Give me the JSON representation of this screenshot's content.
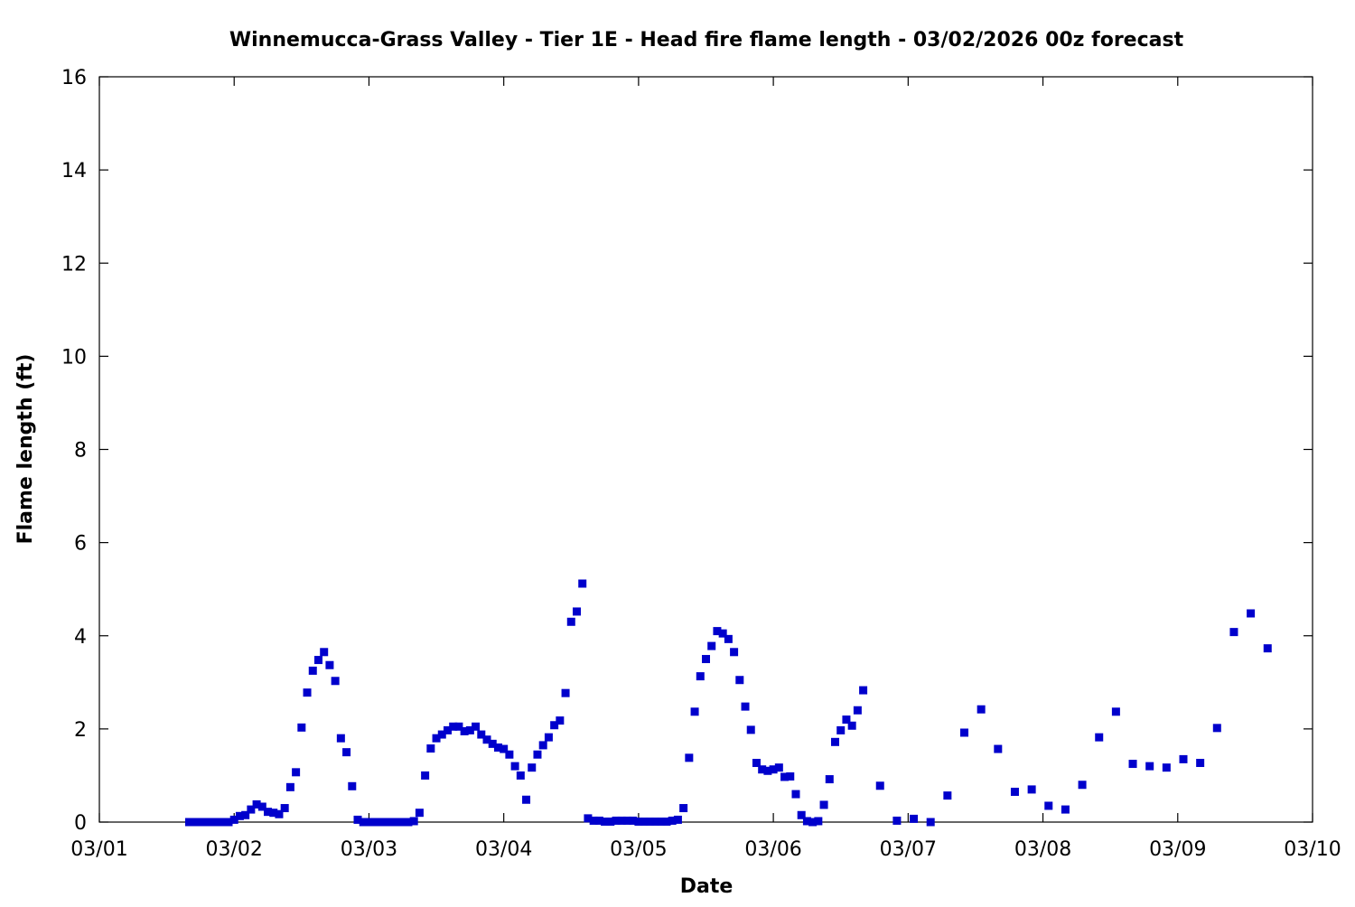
{
  "chart_data": {
    "type": "scatter",
    "title": "Winnemucca-Grass Valley - Tier 1E - Head fire flame length - 03/02/2026 00z forecast",
    "xlabel": "Date",
    "ylabel": "Flame length (ft)",
    "xlim": [
      "03/01 00:00",
      "03/10 00:00"
    ],
    "ylim": [
      0,
      16
    ],
    "xticks": [
      "03/01",
      "03/02",
      "03/03",
      "03/04",
      "03/05",
      "03/06",
      "03/07",
      "03/08",
      "03/09",
      "03/10"
    ],
    "yticks": [
      0,
      2,
      4,
      6,
      8,
      10,
      12,
      14,
      16
    ],
    "grid": false,
    "marker_color": "#0000cc",
    "points": [
      [
        "03/01 16:00",
        0
      ],
      [
        "03/01 17:00",
        0
      ],
      [
        "03/01 18:00",
        0
      ],
      [
        "03/01 19:00",
        0
      ],
      [
        "03/01 20:00",
        0
      ],
      [
        "03/01 21:00",
        0
      ],
      [
        "03/01 22:00",
        0
      ],
      [
        "03/01 23:00",
        0
      ],
      [
        "03/02 00:00",
        0.05
      ],
      [
        "03/02 01:00",
        0.13
      ],
      [
        "03/02 02:00",
        0.15
      ],
      [
        "03/02 03:00",
        0.27
      ],
      [
        "03/02 04:00",
        0.38
      ],
      [
        "03/02 05:00",
        0.33
      ],
      [
        "03/02 06:00",
        0.22
      ],
      [
        "03/02 07:00",
        0.2
      ],
      [
        "03/02 08:00",
        0.17
      ],
      [
        "03/02 09:00",
        0.3
      ],
      [
        "03/02 10:00",
        0.75
      ],
      [
        "03/02 11:00",
        1.07
      ],
      [
        "03/02 12:00",
        2.03
      ],
      [
        "03/02 13:00",
        2.78
      ],
      [
        "03/02 14:00",
        3.25
      ],
      [
        "03/02 15:00",
        3.48
      ],
      [
        "03/02 16:00",
        3.65
      ],
      [
        "03/02 17:00",
        3.37
      ],
      [
        "03/02 18:00",
        3.03
      ],
      [
        "03/02 19:00",
        1.8
      ],
      [
        "03/02 20:00",
        1.5
      ],
      [
        "03/02 21:00",
        0.77
      ],
      [
        "03/02 22:00",
        0.05
      ],
      [
        "03/02 23:00",
        0
      ],
      [
        "03/03 00:00",
        0
      ],
      [
        "03/03 01:00",
        0
      ],
      [
        "03/03 02:00",
        0
      ],
      [
        "03/03 03:00",
        0
      ],
      [
        "03/03 04:00",
        0
      ],
      [
        "03/03 05:00",
        0
      ],
      [
        "03/03 06:00",
        0
      ],
      [
        "03/03 07:00",
        0
      ],
      [
        "03/03 08:00",
        0.02
      ],
      [
        "03/03 09:00",
        0.2
      ],
      [
        "03/03 10:00",
        1.0
      ],
      [
        "03/03 11:00",
        1.58
      ],
      [
        "03/03 12:00",
        1.8
      ],
      [
        "03/03 13:00",
        1.88
      ],
      [
        "03/03 14:00",
        1.97
      ],
      [
        "03/03 15:00",
        2.05
      ],
      [
        "03/03 16:00",
        2.05
      ],
      [
        "03/03 17:00",
        1.95
      ],
      [
        "03/03 18:00",
        1.97
      ],
      [
        "03/03 19:00",
        2.05
      ],
      [
        "03/03 20:00",
        1.88
      ],
      [
        "03/03 21:00",
        1.77
      ],
      [
        "03/03 22:00",
        1.68
      ],
      [
        "03/03 23:00",
        1.6
      ],
      [
        "03/04 00:00",
        1.57
      ],
      [
        "03/04 01:00",
        1.45
      ],
      [
        "03/04 02:00",
        1.2
      ],
      [
        "03/04 03:00",
        1.0
      ],
      [
        "03/04 04:00",
        0.48
      ],
      [
        "03/04 05:00",
        1.17
      ],
      [
        "03/04 06:00",
        1.45
      ],
      [
        "03/04 07:00",
        1.65
      ],
      [
        "03/04 08:00",
        1.82
      ],
      [
        "03/04 09:00",
        2.08
      ],
      [
        "03/04 10:00",
        2.18
      ],
      [
        "03/04 11:00",
        2.77
      ],
      [
        "03/04 12:00",
        4.3
      ],
      [
        "03/04 13:00",
        4.52
      ],
      [
        "03/04 14:00",
        5.12
      ],
      [
        "03/04 15:00",
        0.08
      ],
      [
        "03/04 16:00",
        0.03
      ],
      [
        "03/04 17:00",
        0.03
      ],
      [
        "03/04 18:00",
        0.01
      ],
      [
        "03/04 19:00",
        0.01
      ],
      [
        "03/04 20:00",
        0.03
      ],
      [
        "03/04 21:00",
        0.03
      ],
      [
        "03/04 22:00",
        0.03
      ],
      [
        "03/04 23:00",
        0.03
      ],
      [
        "03/05 00:00",
        0.01
      ],
      [
        "03/05 01:00",
        0.01
      ],
      [
        "03/05 02:00",
        0.01
      ],
      [
        "03/05 03:00",
        0.01
      ],
      [
        "03/05 04:00",
        0.01
      ],
      [
        "03/05 05:00",
        0.01
      ],
      [
        "03/05 06:00",
        0.03
      ],
      [
        "03/05 07:00",
        0.05
      ],
      [
        "03/05 08:00",
        0.3
      ],
      [
        "03/05 09:00",
        1.38
      ],
      [
        "03/05 10:00",
        2.37
      ],
      [
        "03/05 11:00",
        3.13
      ],
      [
        "03/05 12:00",
        3.5
      ],
      [
        "03/05 13:00",
        3.78
      ],
      [
        "03/05 14:00",
        4.1
      ],
      [
        "03/05 15:00",
        4.05
      ],
      [
        "03/05 16:00",
        3.93
      ],
      [
        "03/05 17:00",
        3.65
      ],
      [
        "03/05 18:00",
        3.05
      ],
      [
        "03/05 19:00",
        2.48
      ],
      [
        "03/05 20:00",
        1.98
      ],
      [
        "03/05 21:00",
        1.27
      ],
      [
        "03/05 22:00",
        1.13
      ],
      [
        "03/05 23:00",
        1.1
      ],
      [
        "03/06 00:00",
        1.13
      ],
      [
        "03/06 01:00",
        1.17
      ],
      [
        "03/06 02:00",
        0.97
      ],
      [
        "03/06 03:00",
        0.98
      ],
      [
        "03/06 04:00",
        0.6
      ],
      [
        "03/06 05:00",
        0.15
      ],
      [
        "03/06 06:00",
        0.02
      ],
      [
        "03/06 07:00",
        0
      ],
      [
        "03/06 08:00",
        0.02
      ],
      [
        "03/06 09:00",
        0.37
      ],
      [
        "03/06 10:00",
        0.92
      ],
      [
        "03/06 11:00",
        1.72
      ],
      [
        "03/06 12:00",
        1.97
      ],
      [
        "03/06 13:00",
        2.2
      ],
      [
        "03/06 14:00",
        2.07
      ],
      [
        "03/06 15:00",
        2.4
      ],
      [
        "03/06 16:00",
        2.83
      ],
      [
        "03/06 19:00",
        0.78
      ],
      [
        "03/06 22:00",
        0.03
      ],
      [
        "03/07 01:00",
        0.07
      ],
      [
        "03/07 04:00",
        0
      ],
      [
        "03/07 07:00",
        0.57
      ],
      [
        "03/07 10:00",
        1.92
      ],
      [
        "03/07 13:00",
        2.42
      ],
      [
        "03/07 16:00",
        1.57
      ],
      [
        "03/07 19:00",
        0.65
      ],
      [
        "03/07 22:00",
        0.7
      ],
      [
        "03/08 01:00",
        0.35
      ],
      [
        "03/08 04:00",
        0.27
      ],
      [
        "03/08 07:00",
        0.8
      ],
      [
        "03/08 10:00",
        1.82
      ],
      [
        "03/08 13:00",
        2.37
      ],
      [
        "03/08 16:00",
        1.25
      ],
      [
        "03/08 19:00",
        1.2
      ],
      [
        "03/08 22:00",
        1.17
      ],
      [
        "03/09 01:00",
        1.35
      ],
      [
        "03/09 04:00",
        1.27
      ],
      [
        "03/09 07:00",
        2.02
      ],
      [
        "03/09 10:00",
        4.08
      ],
      [
        "03/09 13:00",
        4.48
      ],
      [
        "03/09 16:00",
        3.73
      ]
    ]
  }
}
